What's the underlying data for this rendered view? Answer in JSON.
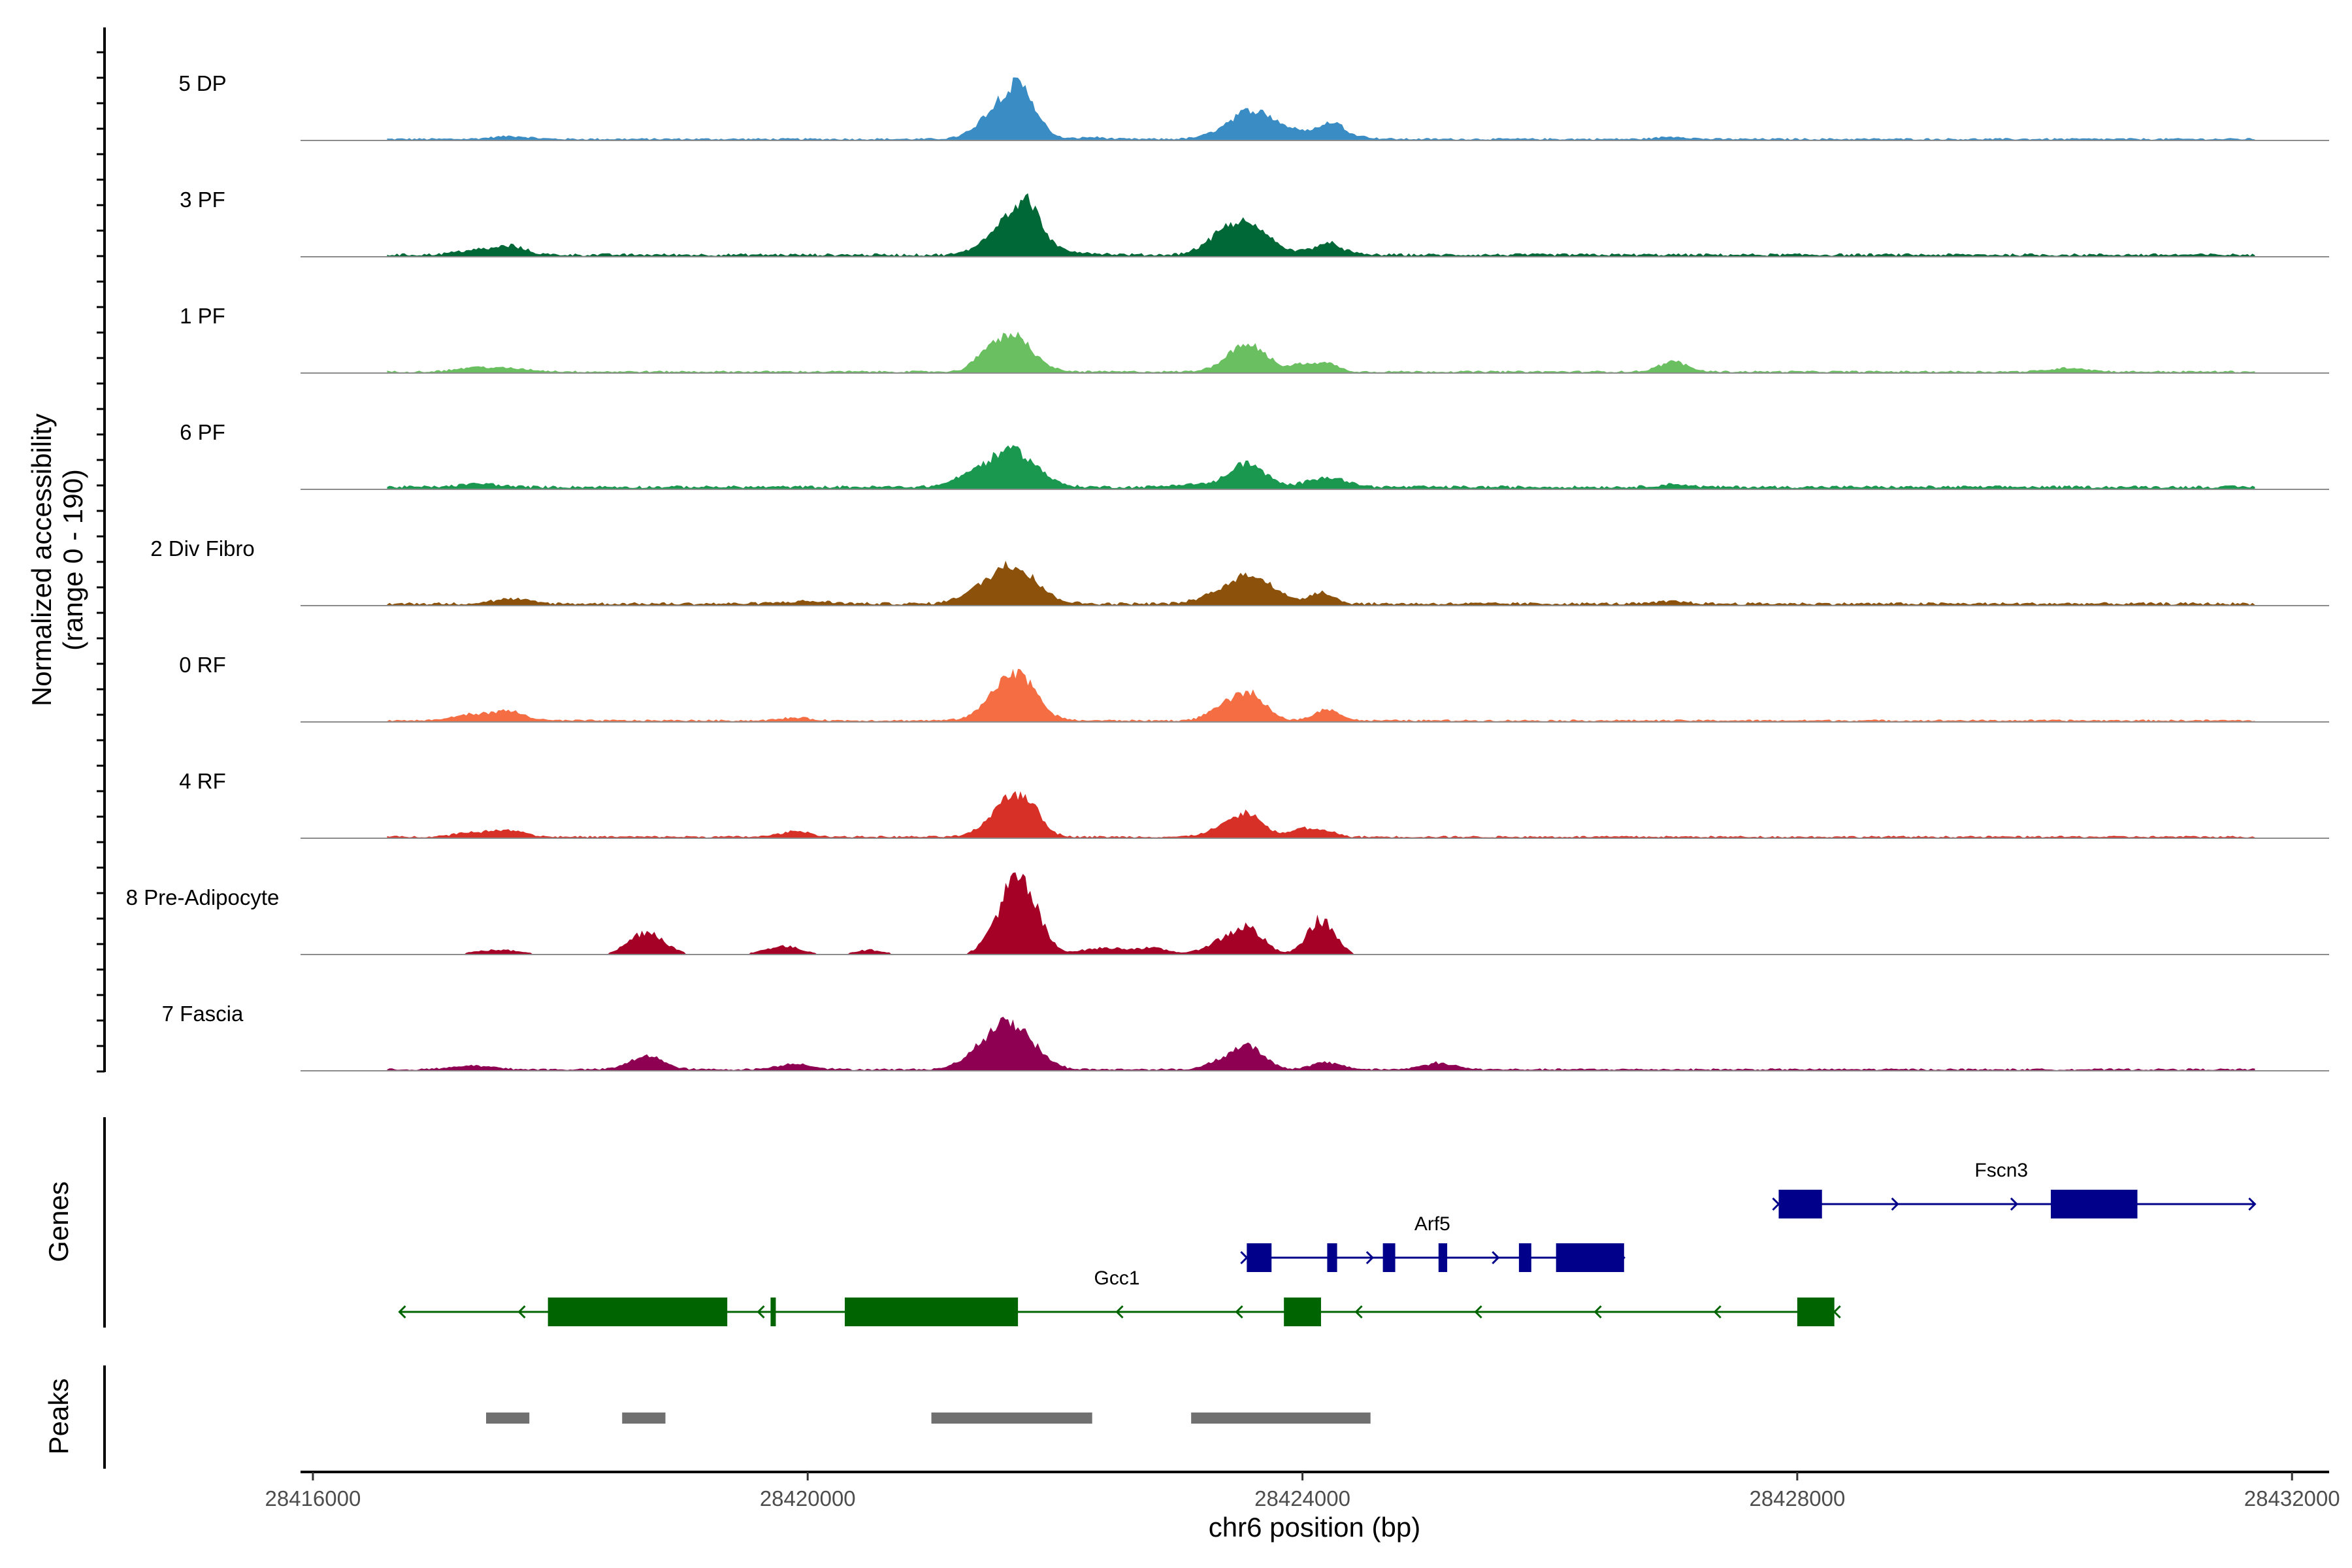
{
  "chart_data": {
    "type": "area",
    "title": "",
    "xlabel": "chr6 position (bp)",
    "ylabel": "Normalized accessibility",
    "ylabel_range": "(range 0 - 190)",
    "y_range": [
      0,
      190
    ],
    "x_range": [
      28415900,
      28432300
    ],
    "x_ticks": [
      28416000,
      28420000,
      28424000,
      28428000,
      28432000
    ],
    "x_tick_labels": [
      "28416000",
      "28420000",
      "28424000",
      "28428000",
      "28432000"
    ],
    "series": [
      {
        "name": "5 DP",
        "color": "#3A8CC4",
        "baseline": 3,
        "noise": 2,
        "solid": true,
        "peaks": [
          [
            28417600,
            150,
            6
          ],
          [
            28421600,
            170,
            82
          ],
          [
            28421750,
            110,
            55
          ],
          [
            28423600,
            200,
            62
          ],
          [
            28424200,
            180,
            22
          ],
          [
            28424250,
            70,
            15
          ],
          [
            28427000,
            120,
            5
          ],
          [
            28422300,
            100,
            4
          ]
        ]
      },
      {
        "name": "3 PF",
        "color": "#006837",
        "baseline": 4,
        "noise": 3,
        "solid": true,
        "peaks": [
          [
            28417300,
            150,
            10
          ],
          [
            28417600,
            120,
            18
          ],
          [
            28421650,
            170,
            85
          ],
          [
            28421800,
            90,
            50
          ],
          [
            28423550,
            190,
            60
          ],
          [
            28423350,
            150,
            20
          ],
          [
            28424200,
            120,
            25
          ],
          [
            28422000,
            250,
            8
          ]
        ]
      },
      {
        "name": "1 PF",
        "color": "#6ABF60",
        "baseline": 3,
        "noise": 2,
        "solid": true,
        "peaks": [
          [
            28417300,
            150,
            8
          ],
          [
            28417600,
            180,
            6
          ],
          [
            28421650,
            160,
            82
          ],
          [
            28421400,
            70,
            20
          ],
          [
            28423550,
            160,
            58
          ],
          [
            28424000,
            90,
            15
          ],
          [
            28424200,
            90,
            18
          ],
          [
            28427000,
            110,
            22
          ],
          [
            28430200,
            150,
            8
          ]
        ]
      },
      {
        "name": "6 PF",
        "color": "#1A9850",
        "baseline": 5,
        "noise": 3,
        "solid": true,
        "peaks": [
          [
            28417350,
            150,
            7
          ],
          [
            28421650,
            190,
            80
          ],
          [
            28421300,
            140,
            18
          ],
          [
            28423550,
            140,
            52
          ],
          [
            28424200,
            150,
            22
          ],
          [
            28423100,
            150,
            6
          ],
          [
            28427000,
            120,
            6
          ]
        ]
      },
      {
        "name": "2 Div Fibro",
        "color": "#8C510A",
        "baseline": 4,
        "noise": 3,
        "solid": true,
        "peaks": [
          [
            28417600,
            150,
            10
          ],
          [
            28421650,
            190,
            85
          ],
          [
            28421300,
            120,
            12
          ],
          [
            28423600,
            170,
            60
          ],
          [
            28423300,
            150,
            15
          ],
          [
            28424150,
            100,
            25
          ],
          [
            28420000,
            200,
            5
          ],
          [
            28427000,
            120,
            5
          ]
        ]
      },
      {
        "name": "0 RF",
        "color": "#F46D43",
        "baseline": 3,
        "noise": 2,
        "solid": true,
        "peaks": [
          [
            28417300,
            150,
            14
          ],
          [
            28417600,
            120,
            18
          ],
          [
            28419900,
            120,
            6
          ],
          [
            28421650,
            170,
            92
          ],
          [
            28421800,
            90,
            20
          ],
          [
            28423550,
            140,
            60
          ],
          [
            28423300,
            100,
            15
          ],
          [
            28424200,
            100,
            25
          ]
        ]
      },
      {
        "name": "4 RF",
        "color": "#D73027",
        "baseline": 3,
        "noise": 2,
        "solid": true,
        "peaks": [
          [
            28417300,
            150,
            10
          ],
          [
            28417600,
            120,
            14
          ],
          [
            28419900,
            120,
            12
          ],
          [
            28421650,
            160,
            85
          ],
          [
            28421800,
            90,
            25
          ],
          [
            28423550,
            130,
            50
          ],
          [
            28423300,
            110,
            12
          ],
          [
            28424000,
            90,
            18
          ],
          [
            28424200,
            80,
            12
          ]
        ]
      },
      {
        "name": "8 Pre-Adipocyte",
        "color": "#A50026",
        "baseline": 0,
        "noise": 0,
        "solid": false,
        "peaks": [
          [
            28418700,
            140,
            50
          ],
          [
            28417500,
            200,
            10
          ],
          [
            28419800,
            150,
            18
          ],
          [
            28421650,
            140,
            125
          ],
          [
            28421800,
            120,
            60
          ],
          [
            28423550,
            130,
            58
          ],
          [
            28424150,
            110,
            75
          ],
          [
            28423300,
            120,
            20
          ],
          [
            28422400,
            200,
            14
          ],
          [
            28420500,
            120,
            10
          ],
          [
            28422800,
            140,
            12
          ]
        ]
      },
      {
        "name": "7 Fascia",
        "color": "#8E0152",
        "baseline": 3,
        "noise": 2,
        "solid": true,
        "peaks": [
          [
            28417300,
            160,
            8
          ],
          [
            28418700,
            130,
            30
          ],
          [
            28419900,
            140,
            12
          ],
          [
            28421650,
            180,
            95
          ],
          [
            28421400,
            150,
            25
          ],
          [
            28423550,
            130,
            52
          ],
          [
            28423300,
            100,
            12
          ],
          [
            28424200,
            120,
            15
          ],
          [
            28425100,
            130,
            14
          ]
        ]
      }
    ],
    "genes": [
      {
        "name": "Gcc1",
        "strand": "-",
        "color": "#006400",
        "row": 2,
        "start": 28416700,
        "end": 28428300,
        "label_pos": 28422500,
        "exons": [
          [
            28417900,
            28419350
          ],
          [
            28419700,
            28419730
          ],
          [
            28420300,
            28421700
          ],
          [
            28423850,
            28424150
          ],
          [
            28428000,
            28428300
          ]
        ]
      },
      {
        "name": "Arf5",
        "strand": "+",
        "color": "#00008B",
        "row": 1,
        "start": 28423550,
        "end": 28426600,
        "label_pos": 28425050,
        "exons": [
          [
            28423550,
            28423750
          ],
          [
            28424200,
            28424280
          ],
          [
            28424650,
            28424750
          ],
          [
            28425100,
            28425170
          ],
          [
            28425750,
            28425850
          ],
          [
            28426050,
            28426600
          ]
        ]
      },
      {
        "name": "Fscn3",
        "strand": "+",
        "color": "#00008B",
        "row": 0,
        "start": 28427850,
        "end": 28431700,
        "label_pos": 28429650,
        "exons": [
          [
            28427850,
            28428200
          ],
          [
            28430050,
            28430750
          ]
        ]
      }
    ],
    "peaks_track": [
      [
        28417400,
        28417750
      ],
      [
        28418500,
        28418850
      ],
      [
        28421000,
        28422300
      ],
      [
        28423100,
        28424550
      ]
    ],
    "peak_color": "#707070",
    "panel_labels": [
      "Genes",
      "Peaks"
    ]
  }
}
